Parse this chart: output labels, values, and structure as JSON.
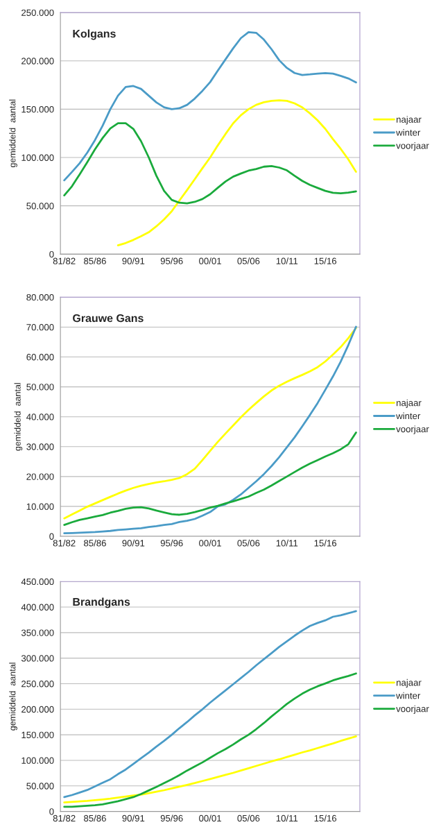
{
  "chart_data": [
    {
      "type": "line",
      "title": "Kolgans",
      "ylabel": "gemiddeld  aantal",
      "categories": [
        "81/82",
        null,
        null,
        null,
        "85/86",
        null,
        null,
        null,
        null,
        "90/91",
        null,
        null,
        null,
        null,
        "95/96",
        null,
        null,
        null,
        null,
        "00/01",
        null,
        null,
        null,
        null,
        "05/06",
        null,
        null,
        null,
        null,
        "10/11",
        null,
        null,
        null,
        null,
        "15/16",
        null,
        null,
        null,
        null
      ],
      "ylim": [
        0,
        250000
      ],
      "yticks": [
        0,
        {
          "value": 50000,
          "label": "50.000"
        },
        {
          "value": 100000,
          "label": "100.000"
        },
        {
          "value": 150000,
          "label": "150.000"
        },
        {
          "value": 200000,
          "label": "200.000"
        },
        {
          "value": 250000,
          "label": "250.000"
        }
      ],
      "grid": "y",
      "legend": "right",
      "series": [
        {
          "name": "najaar",
          "color": "#ffff00",
          "values": [
            null,
            null,
            null,
            null,
            null,
            null,
            null,
            9100,
            11500,
            14700,
            18500,
            22600,
            28800,
            36000,
            44400,
            55500,
            66400,
            77600,
            89000,
            100000,
            112500,
            124300,
            135400,
            143700,
            150000,
            154500,
            157200,
            158600,
            159200,
            158600,
            156000,
            151900,
            145700,
            138400,
            129600,
            119000,
            109000,
            98000,
            85200
          ]
        },
        {
          "name": "winter",
          "color": "#4a9bc7",
          "values": [
            76400,
            85000,
            94000,
            105000,
            118000,
            133000,
            150000,
            164000,
            173000,
            174000,
            171000,
            164000,
            157000,
            152000,
            150000,
            151000,
            154500,
            161000,
            169000,
            178000,
            190000,
            201500,
            213000,
            223500,
            229700,
            229000,
            222000,
            212000,
            200600,
            192700,
            187400,
            185400,
            186000,
            186800,
            187400,
            186800,
            184500,
            181800,
            177700
          ]
        },
        {
          "name": "voorjaar",
          "color": "#1aaa3c",
          "values": [
            60800,
            70200,
            82500,
            95200,
            108400,
            120200,
            130100,
            135400,
            135400,
            129600,
            116900,
            100200,
            81100,
            65500,
            56100,
            53200,
            52600,
            54100,
            57000,
            62000,
            68700,
            75200,
            80200,
            83400,
            86400,
            88100,
            90500,
            91100,
            89600,
            86700,
            81100,
            75800,
            71700,
            68500,
            65500,
            63500,
            62900,
            63700,
            64900
          ]
        }
      ]
    },
    {
      "type": "line",
      "title": "Grauwe Gans",
      "ylabel": "gemiddeld  aantal",
      "categories": [
        "81/82",
        null,
        null,
        null,
        "85/86",
        null,
        null,
        null,
        null,
        "90/91",
        null,
        null,
        null,
        null,
        "95/96",
        null,
        null,
        null,
        null,
        "00/01",
        null,
        null,
        null,
        null,
        "05/06",
        null,
        null,
        null,
        null,
        "10/11",
        null,
        null,
        null,
        null,
        "15/16",
        null,
        null,
        null,
        null
      ],
      "ylim": [
        0,
        80000
      ],
      "yticks": [
        0,
        {
          "value": 10000,
          "label": "10.000"
        },
        {
          "value": 20000,
          "label": "20.000"
        },
        {
          "value": 30000,
          "label": "30.000"
        },
        {
          "value": 40000,
          "label": "40.000"
        },
        {
          "value": 50000,
          "label": "50.000"
        },
        {
          "value": 60000,
          "label": "60.000"
        },
        {
          "value": 70000,
          "label": "70.000"
        },
        {
          "value": 80000,
          "label": "80.000"
        }
      ],
      "grid": "y",
      "legend": "right",
      "series": [
        {
          "name": "najaar",
          "color": "#ffff00",
          "values": [
            6000,
            7300,
            8600,
            9900,
            11000,
            12100,
            13200,
            14300,
            15300,
            16200,
            16900,
            17500,
            18000,
            18400,
            18900,
            19500,
            20800,
            22600,
            25500,
            28600,
            31600,
            34400,
            37100,
            39800,
            42300,
            44600,
            46800,
            48800,
            50400,
            51700,
            52900,
            54000,
            55200,
            56600,
            58500,
            60800,
            63300,
            66300,
            69700
          ]
        },
        {
          "name": "winter",
          "color": "#4a9bc7",
          "values": [
            1000,
            1100,
            1200,
            1300,
            1400,
            1600,
            1800,
            2100,
            2300,
            2500,
            2700,
            3100,
            3400,
            3800,
            4100,
            4800,
            5200,
            5800,
            6900,
            8100,
            10000,
            10700,
            12200,
            14000,
            16200,
            18400,
            20800,
            23500,
            26500,
            29800,
            33100,
            36800,
            40600,
            44600,
            49000,
            53500,
            58400,
            64000,
            70100
          ]
        },
        {
          "name": "voorjaar",
          "color": "#1aaa3c",
          "values": [
            3800,
            4700,
            5500,
            6000,
            6600,
            7100,
            7900,
            8500,
            9200,
            9600,
            9700,
            9300,
            8600,
            8000,
            7400,
            7200,
            7500,
            8100,
            8800,
            9600,
            10200,
            11000,
            11700,
            12500,
            13300,
            14500,
            15600,
            17000,
            18500,
            20000,
            21500,
            23000,
            24300,
            25500,
            26700,
            27800,
            29100,
            30800,
            34700
          ]
        }
      ]
    },
    {
      "type": "line",
      "title": "Brandgans",
      "ylabel": "gemiddeld  aantal",
      "categories": [
        "81/82",
        null,
        null,
        null,
        "85/86",
        null,
        null,
        null,
        null,
        "90/91",
        null,
        null,
        null,
        null,
        "95/96",
        null,
        null,
        null,
        null,
        "00/01",
        null,
        null,
        null,
        null,
        "05/06",
        null,
        null,
        null,
        null,
        "10/11",
        null,
        null,
        null,
        null,
        "15/16",
        null,
        null,
        null,
        null
      ],
      "ylim": [
        0,
        450000
      ],
      "yticks": [
        0,
        {
          "value": 50000,
          "label": "50.000"
        },
        {
          "value": 100000,
          "label": "100.000"
        },
        {
          "value": 150000,
          "label": "150.000"
        },
        {
          "value": 200000,
          "label": "200.000"
        },
        {
          "value": 250000,
          "label": "250.000"
        },
        {
          "value": 300000,
          "label": "300.000"
        },
        {
          "value": 350000,
          "label": "350.000"
        },
        {
          "value": 400000,
          "label": "400.000"
        },
        {
          "value": 450000,
          "label": "450.000"
        }
      ],
      "grid": "y",
      "legend": "right",
      "series": [
        {
          "name": "najaar",
          "color": "#ffff00",
          "values": [
            17500,
            18500,
            19500,
            20500,
            22000,
            23500,
            25000,
            27000,
            29000,
            31000,
            33000,
            35500,
            38500,
            41500,
            45000,
            48500,
            52000,
            55500,
            59500,
            63500,
            67500,
            71500,
            75500,
            80000,
            84500,
            89000,
            93500,
            98000,
            102000,
            106500,
            111000,
            115500,
            119500,
            124000,
            128500,
            133000,
            138000,
            142500,
            147000
          ]
        },
        {
          "name": "winter",
          "color": "#4a9bc7",
          "values": [
            28000,
            32000,
            37000,
            42000,
            49000,
            56000,
            63000,
            73000,
            82000,
            93000,
            104000,
            115000,
            127000,
            138000,
            150000,
            163000,
            175000,
            188000,
            200000,
            213000,
            225000,
            237000,
            249000,
            261000,
            273000,
            286000,
            298000,
            310000,
            322000,
            333000,
            344000,
            354000,
            363000,
            369000,
            374000,
            381000,
            384000,
            388000,
            392000
          ]
        },
        {
          "name": "voorjaar",
          "color": "#1aaa3c",
          "values": [
            9000,
            9000,
            10000,
            11000,
            12000,
            14000,
            17000,
            20000,
            24000,
            28000,
            34000,
            41000,
            48000,
            55500,
            63000,
            71000,
            80000,
            88000,
            96000,
            105000,
            114000,
            122000,
            131000,
            141000,
            150000,
            161000,
            173000,
            186000,
            198000,
            210500,
            221000,
            230500,
            238500,
            245000,
            250500,
            256500,
            261000,
            265000,
            270000
          ]
        }
      ]
    }
  ]
}
